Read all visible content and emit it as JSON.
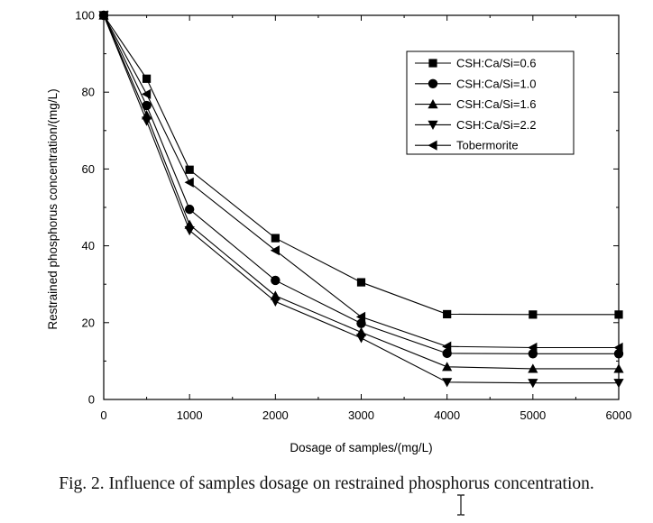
{
  "caption": "Fig. 2.  Influence of samples dosage on restrained phosphorus concentration.",
  "chart_data": {
    "type": "line",
    "xlabel": "Dosage of samples/(mg/L)",
    "ylabel": "Restrained phosphorus concentration/(mg/L)",
    "xlim": [
      0,
      6000
    ],
    "ylim": [
      0,
      100
    ],
    "x_ticks": [
      "0",
      "1000",
      "2000",
      "3000",
      "4000",
      "5000",
      "6000"
    ],
    "y_ticks": [
      "0",
      "20",
      "40",
      "60",
      "80",
      "100"
    ],
    "grid": false,
    "legend_position": "top-right",
    "x": [
      0,
      500,
      1000,
      2000,
      3000,
      4000,
      5000,
      6000
    ],
    "series": [
      {
        "name": "CSH:Ca/Si=0.6",
        "marker": "square",
        "values": [
          100,
          83.5,
          59.8,
          42.0,
          30.5,
          22.2,
          22.1,
          22.1
        ]
      },
      {
        "name": "CSH:Ca/Si=1.0",
        "marker": "circle",
        "values": [
          100,
          76.5,
          49.5,
          31.0,
          19.8,
          12.0,
          11.9,
          11.9
        ]
      },
      {
        "name": "CSH:Ca/Si=1.6",
        "marker": "triangle-up",
        "values": [
          100,
          74.0,
          45.5,
          27.0,
          17.5,
          8.5,
          8.0,
          8.0
        ]
      },
      {
        "name": "CSH:Ca/Si=2.2",
        "marker": "triangle-down",
        "values": [
          100,
          72.5,
          44.0,
          25.5,
          16.0,
          4.5,
          4.3,
          4.3
        ]
      },
      {
        "name": "Tobermorite",
        "marker": "triangle-left",
        "values": [
          100,
          79.5,
          56.5,
          38.8,
          21.5,
          13.8,
          13.5,
          13.5
        ]
      }
    ]
  }
}
